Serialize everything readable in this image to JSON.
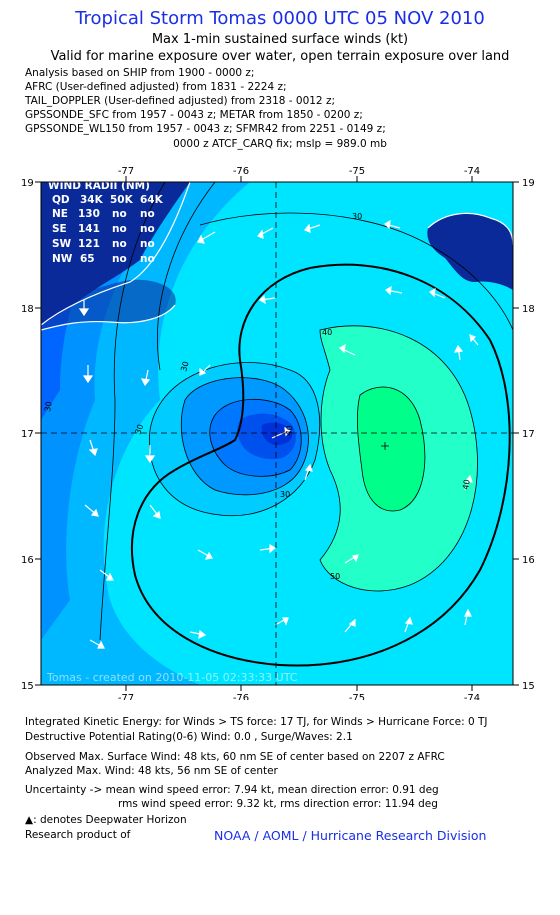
{
  "header": {
    "title": "Tropical Storm Tomas 0000 UTC 05 NOV 2010",
    "subtitle1": "Max 1-min sustained surface winds (kt)",
    "subtitle2": "Valid for marine exposure over water, open terrain exposure over land"
  },
  "analysis_sources": [
    "Analysis based on SHIP from 1900 - 0000 z;",
    "AFRC (User-defined adjusted) from 1831 - 2224 z;",
    "TAIL_DOPPLER (User-defined adjusted) from 2318 - 0012 z;",
    "GPSSONDE_SFC from 1957 - 0043 z; METAR from 1850 - 0200 z;",
    "GPSSONDE_WL150 from 1957 - 0043 z; SFMR42 from 2251 - 0149 z;"
  ],
  "fix_line": "0000 z ATCF_CARQ fix; mslp = 989.0 mb",
  "map": {
    "lon_ticks": [
      "-77",
      "-76",
      "-75",
      "-74"
    ],
    "lat_ticks": [
      "19",
      "18",
      "17",
      "16",
      "15"
    ],
    "center": {
      "lon": -75.7,
      "lat": 17.0
    },
    "contour_labels": [
      "30",
      "30",
      "30",
      "30",
      "30",
      "40",
      "40",
      "40",
      "50"
    ],
    "watermark": "Tomas - created on 2010-11-05 02:33:33 UTC",
    "colors": {
      "outer": "#00e5ff",
      "ring30": "#00b8ff",
      "ring25": "#0093ff",
      "ring20": "#0066ff",
      "ring15": "#0044ee",
      "band40": "#22ffc8",
      "band50": "#00ff8a",
      "land": "#0a2a9a"
    }
  },
  "wind_radii": {
    "title": "WIND RADII (NM)",
    "header": [
      "QD",
      "34K",
      "50K",
      "64K"
    ],
    "rows": [
      [
        "NE",
        "130",
        "no",
        "no"
      ],
      [
        "SE",
        "141",
        "no",
        "no"
      ],
      [
        "SW",
        "121",
        "no",
        "no"
      ],
      [
        "NW",
        "65",
        "no",
        "no"
      ]
    ]
  },
  "footer": {
    "ike": "Integrated Kinetic Energy:  for Winds > TS force: 17 TJ,  for Winds > Hurricane Force: 0 TJ",
    "dpr": "Destructive Potential Rating(0-6)   Wind: 0.0 , Surge/Waves: 2.1",
    "obs_max": "Observed Max. Surface Wind: 48 kts, 60 nm SE of center based on 2207 z AFRC",
    "ana_max": "Analyzed Max. Wind: 48 kts, 56 nm SE of center",
    "unc1": "Uncertainty -> mean wind speed error: 7.94 kt,   mean direction error: 0.91 deg",
    "unc2": "rms wind speed error: 9.32 kt,   rms direction error: 11.94 deg",
    "deepwater": ": denotes Deepwater Horizon",
    "research": "Research product of",
    "org": "NOAA / AOML / Hurricane Research Division"
  }
}
